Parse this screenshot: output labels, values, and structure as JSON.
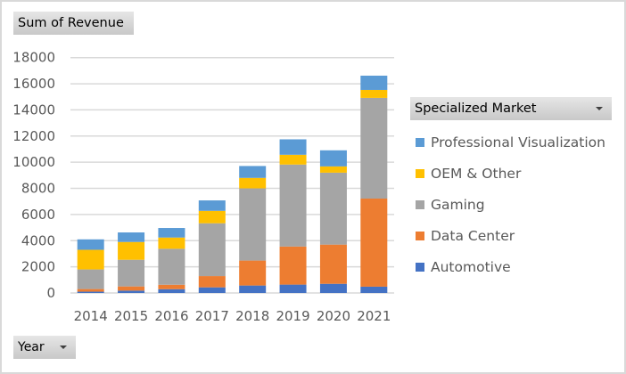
{
  "pivot_fields": {
    "value_field": "Sum of Revenue",
    "axis_field": "Year",
    "legend_field": "Specialized Market"
  },
  "chart_data": {
    "type": "bar",
    "stacked": true,
    "title": "",
    "xlabel": "",
    "ylabel": "",
    "categories": [
      "2014",
      "2015",
      "2016",
      "2017",
      "2018",
      "2019",
      "2020",
      "2021"
    ],
    "ylim": [
      0,
      18000
    ],
    "yticks": [
      0,
      2000,
      4000,
      6000,
      8000,
      10000,
      12000,
      14000,
      16000,
      18000
    ],
    "grid": true,
    "legend_position": "right",
    "series": [
      {
        "name": "Automotive",
        "color": "#4472c4",
        "values": [
          100,
          180,
          290,
          430,
          570,
          640,
          700,
          480
        ]
      },
      {
        "name": "Data Center",
        "color": "#ed7d31",
        "values": [
          200,
          320,
          340,
          860,
          1910,
          2910,
          3000,
          6740
        ]
      },
      {
        "name": "Gaming",
        "color": "#a5a5a5",
        "values": [
          1500,
          2040,
          2750,
          4040,
          5520,
          6270,
          5500,
          7700
        ]
      },
      {
        "name": "OEM & Other",
        "color": "#ffc000",
        "values": [
          1500,
          1360,
          860,
          950,
          800,
          750,
          480,
          610
        ]
      },
      {
        "name": "Professional Visualization",
        "color": "#5b9bd5",
        "values": [
          800,
          730,
          730,
          800,
          910,
          1180,
          1230,
          1090
        ]
      }
    ],
    "legend_order": [
      "Professional Visualization",
      "OEM & Other",
      "Gaming",
      "Data Center",
      "Automotive"
    ]
  }
}
